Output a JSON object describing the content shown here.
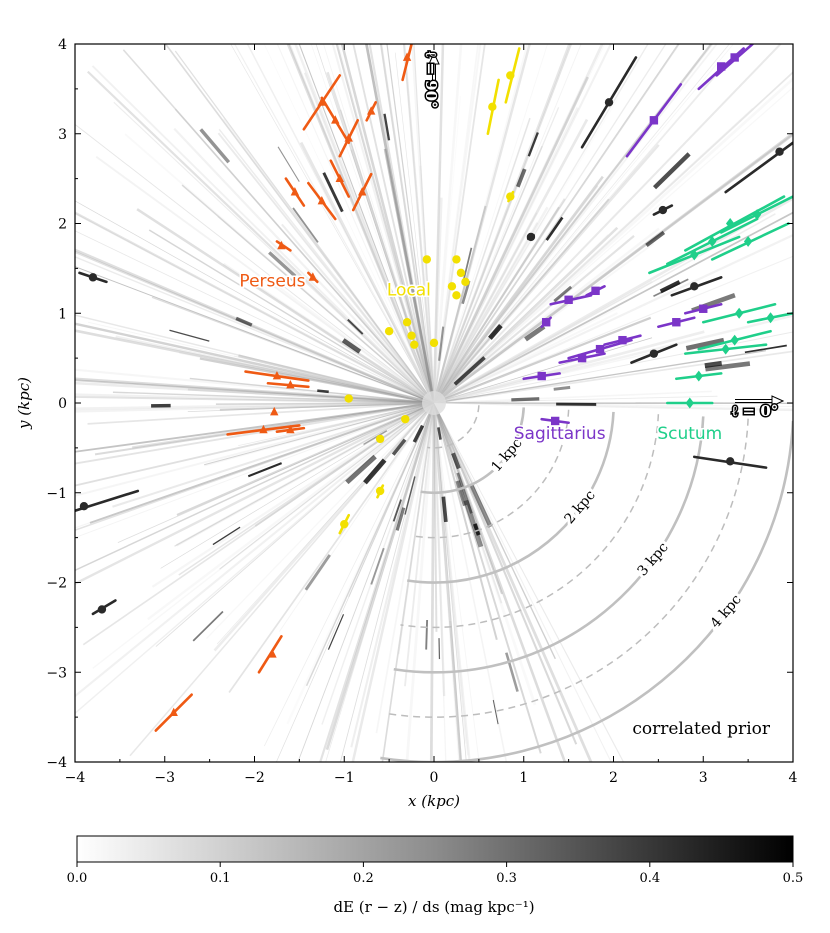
{
  "chart_data": {
    "type": "scatter",
    "title": "",
    "xlabel": "x  (kpc)",
    "ylabel": "y  (kpc)",
    "xlim": [
      -4,
      4
    ],
    "ylim": [
      -4,
      4
    ],
    "x_ticks": [
      "−4",
      "−3",
      "−2",
      "−1",
      "0",
      "1",
      "2",
      "3",
      "4"
    ],
    "y_ticks": [
      "−4",
      "−3",
      "−2",
      "−1",
      "0",
      "1",
      "2",
      "3",
      "4"
    ],
    "annotation": "correlated prior",
    "longitude_markers": [
      {
        "label": "ℓ = 90°",
        "direction": "up"
      },
      {
        "label": "ℓ = 0°",
        "direction": "right"
      }
    ],
    "distance_rings": {
      "labeled": [
        {
          "radius": 1,
          "label": "1 kpc"
        },
        {
          "radius": 2,
          "label": "2 kpc"
        },
        {
          "radius": 3,
          "label": "3 kpc"
        },
        {
          "radius": 4,
          "label": "4 kpc"
        }
      ],
      "dashed": [
        0.5,
        1.5,
        2.5,
        3.5
      ]
    },
    "colorbar": {
      "label": "dE (r − z) / ds  (mag kpc⁻¹)",
      "min": 0.0,
      "max": 0.5,
      "ticks": [
        "0.0",
        "0.1",
        "0.2",
        "0.3",
        "0.4",
        "0.5"
      ],
      "colormap": "white-to-black"
    },
    "series": [
      {
        "name": "Perseus",
        "color": "#ef5a14",
        "marker": "triangle",
        "points": [
          {
            "x": -1.25,
            "y": 3.35,
            "x1": -1.45,
            "y1": 3.05,
            "x2": -1.05,
            "y2": 3.65
          },
          {
            "x": -1.1,
            "y": 3.15,
            "x2": -1.25,
            "y2": 3.4,
            "x1": -0.95,
            "y1": 2.9
          },
          {
            "x": -0.7,
            "y": 3.25,
            "x1": -0.75,
            "y1": 3.15,
            "x2": -0.65,
            "y2": 3.35
          },
          {
            "x": -0.3,
            "y": 3.85,
            "x1": -0.35,
            "y1": 3.6,
            "x2": -0.25,
            "y2": 4.0
          },
          {
            "x": -0.95,
            "y": 2.95,
            "x1": -1.05,
            "y1": 2.75,
            "x2": -0.85,
            "y2": 3.15
          },
          {
            "x": -0.8,
            "y": 2.35,
            "x1": -0.9,
            "y1": 2.15,
            "x2": -0.7,
            "y2": 2.55
          },
          {
            "x": -1.55,
            "y": 2.35,
            "x1": -1.65,
            "y1": 2.5,
            "x2": -1.45,
            "y2": 2.2
          },
          {
            "x": -1.25,
            "y": 2.25,
            "x1": -1.4,
            "y1": 2.45,
            "x2": -1.1,
            "y2": 2.05
          },
          {
            "x": -1.05,
            "y": 2.5,
            "x1": -1.15,
            "y1": 2.7,
            "x2": -0.95,
            "y2": 2.3
          },
          {
            "x": -1.7,
            "y": 1.75,
            "x1": -1.75,
            "y1": 1.8,
            "x2": -1.6,
            "y2": 1.7
          },
          {
            "x": -1.35,
            "y": 1.4,
            "x1": -1.4,
            "y1": 1.45,
            "x2": -1.3,
            "y2": 1.35
          },
          {
            "x": -1.75,
            "y": 0.3,
            "x1": -2.1,
            "y1": 0.35,
            "x2": -1.4,
            "y2": 0.25
          },
          {
            "x": -1.6,
            "y": 0.2,
            "x1": -1.85,
            "y1": 0.22,
            "x2": -1.4,
            "y2": 0.18
          },
          {
            "x": -1.6,
            "y": -0.3,
            "x1": -1.75,
            "y1": -0.32,
            "x2": -1.45,
            "y2": -0.28
          },
          {
            "x": -1.9,
            "y": -0.3,
            "x1": -2.3,
            "y1": -0.35,
            "x2": -1.5,
            "y2": -0.25
          },
          {
            "x": -1.78,
            "y": -0.1,
            "x1": -1.78,
            "y1": -0.1,
            "x2": -1.78,
            "y2": -0.1
          },
          {
            "x": -1.8,
            "y": -2.8,
            "x1": -1.95,
            "y1": -3.0,
            "x2": -1.7,
            "y2": -2.6
          },
          {
            "x": -2.9,
            "y": -3.45,
            "x1": -3.1,
            "y1": -3.65,
            "x2": -2.7,
            "y2": -3.25
          }
        ]
      },
      {
        "name": "Local",
        "color": "#f2e000",
        "marker": "circle",
        "points": [
          {
            "x": 0.85,
            "y": 3.65,
            "x1": 0.8,
            "y1": 3.35,
            "x2": 0.95,
            "y2": 3.95
          },
          {
            "x": 0.65,
            "y": 3.3,
            "x1": 0.6,
            "y1": 3.0,
            "x2": 0.72,
            "y2": 3.6
          },
          {
            "x": 0.85,
            "y": 2.3,
            "x1": 0.83,
            "y1": 2.25,
            "x2": 0.88,
            "y2": 2.35
          },
          {
            "x": -0.08,
            "y": 1.6,
            "x1": -0.08,
            "y1": 1.6,
            "x2": -0.08,
            "y2": 1.6
          },
          {
            "x": 0.25,
            "y": 1.6,
            "x1": 0.25,
            "y1": 1.6,
            "x2": 0.25,
            "y2": 1.6
          },
          {
            "x": 0.3,
            "y": 1.45,
            "x1": 0.3,
            "y1": 1.45,
            "x2": 0.3,
            "y2": 1.45
          },
          {
            "x": 0.2,
            "y": 1.3,
            "x1": 0.2,
            "y1": 1.3,
            "x2": 0.2,
            "y2": 1.3
          },
          {
            "x": 0.35,
            "y": 1.35,
            "x1": 0.35,
            "y1": 1.35,
            "x2": 0.35,
            "y2": 1.35
          },
          {
            "x": 0.25,
            "y": 1.2,
            "x1": 0.25,
            "y1": 1.2,
            "x2": 0.25,
            "y2": 1.2
          },
          {
            "x": -0.5,
            "y": 0.8,
            "x1": -0.5,
            "y1": 0.8,
            "x2": -0.5,
            "y2": 0.8
          },
          {
            "x": -0.3,
            "y": 0.9,
            "x1": -0.3,
            "y1": 0.9,
            "x2": -0.3,
            "y2": 0.9
          },
          {
            "x": -0.25,
            "y": 0.75,
            "x1": -0.25,
            "y1": 0.75,
            "x2": -0.25,
            "y2": 0.75
          },
          {
            "x": -0.22,
            "y": 0.65,
            "x1": -0.22,
            "y1": 0.65,
            "x2": -0.22,
            "y2": 0.65
          },
          {
            "x": 0.0,
            "y": 0.67,
            "x1": 0.0,
            "y1": 0.67,
            "x2": 0.0,
            "y2": 0.67
          },
          {
            "x": -0.95,
            "y": 0.05,
            "x1": -0.95,
            "y1": 0.05,
            "x2": -0.95,
            "y2": 0.05
          },
          {
            "x": -0.32,
            "y": -0.18,
            "x1": -0.32,
            "y1": -0.18,
            "x2": -0.32,
            "y2": -0.18
          },
          {
            "x": -0.6,
            "y": -0.4,
            "x1": -0.6,
            "y1": -0.4,
            "x2": -0.6,
            "y2": -0.4
          },
          {
            "x": -0.6,
            "y": -0.98,
            "x1": -0.63,
            "y1": -1.05,
            "x2": -0.57,
            "y2": -0.92
          },
          {
            "x": -1.0,
            "y": -1.35,
            "x1": -1.05,
            "y1": -1.45,
            "x2": -0.95,
            "y2": -1.25
          }
        ]
      },
      {
        "name": "Sagittarius",
        "color": "#7b35c8",
        "marker": "square",
        "points": [
          {
            "x": 3.35,
            "y": 3.85,
            "x1": 3.15,
            "y1": 3.65,
            "x2": 3.55,
            "y2": 4.0
          },
          {
            "x": 3.2,
            "y": 3.75,
            "x1": 2.95,
            "y1": 3.5,
            "x2": 3.45,
            "y2": 3.95
          },
          {
            "x": 2.45,
            "y": 3.15,
            "x1": 2.15,
            "y1": 2.75,
            "x2": 2.75,
            "y2": 3.55
          },
          {
            "x": 1.5,
            "y": 1.15,
            "x1": 1.3,
            "y1": 1.1,
            "x2": 1.75,
            "y2": 1.2
          },
          {
            "x": 1.8,
            "y": 1.25,
            "x1": 1.7,
            "y1": 1.2,
            "x2": 1.9,
            "y2": 1.3
          },
          {
            "x": 1.25,
            "y": 0.9,
            "x1": 1.2,
            "y1": 0.85,
            "x2": 1.3,
            "y2": 0.95
          },
          {
            "x": 3.0,
            "y": 1.05,
            "x1": 2.8,
            "y1": 1.0,
            "x2": 3.2,
            "y2": 1.1
          },
          {
            "x": 2.7,
            "y": 0.9,
            "x1": 2.5,
            "y1": 0.85,
            "x2": 2.9,
            "y2": 0.95
          },
          {
            "x": 1.85,
            "y": 0.6,
            "x1": 1.5,
            "y1": 0.5,
            "x2": 2.2,
            "y2": 0.7
          },
          {
            "x": 2.1,
            "y": 0.7,
            "x1": 1.9,
            "y1": 0.65,
            "x2": 2.3,
            "y2": 0.75
          },
          {
            "x": 1.65,
            "y": 0.5,
            "x1": 1.4,
            "y1": 0.45,
            "x2": 1.9,
            "y2": 0.55
          },
          {
            "x": 1.2,
            "y": 0.3,
            "x1": 1.0,
            "y1": 0.27,
            "x2": 1.4,
            "y2": 0.33
          },
          {
            "x": 1.35,
            "y": -0.2,
            "x1": 1.2,
            "y1": -0.18,
            "x2": 1.5,
            "y2": -0.22
          }
        ]
      },
      {
        "name": "Scutum",
        "color": "#1fcf8a",
        "marker": "diamond",
        "points": [
          {
            "x": 3.3,
            "y": 2.0,
            "x1": 2.8,
            "y1": 1.7,
            "x2": 3.9,
            "y2": 2.3
          },
          {
            "x": 3.1,
            "y": 1.8,
            "x1": 2.6,
            "y1": 1.55,
            "x2": 3.6,
            "y2": 2.05
          },
          {
            "x": 3.6,
            "y": 2.1,
            "x1": 3.2,
            "y1": 1.9,
            "x2": 4.0,
            "y2": 2.3
          },
          {
            "x": 2.9,
            "y": 1.65,
            "x1": 2.4,
            "y1": 1.45,
            "x2": 3.4,
            "y2": 1.85
          },
          {
            "x": 3.5,
            "y": 1.8,
            "x1": 3.1,
            "y1": 1.6,
            "x2": 3.95,
            "y2": 2.0
          },
          {
            "x": 3.4,
            "y": 1.0,
            "x1": 3.0,
            "y1": 0.9,
            "x2": 3.8,
            "y2": 1.1
          },
          {
            "x": 3.35,
            "y": 0.7,
            "x1": 2.95,
            "y1": 0.6,
            "x2": 3.75,
            "y2": 0.8
          },
          {
            "x": 3.25,
            "y": 0.6,
            "x1": 2.8,
            "y1": 0.55,
            "x2": 3.7,
            "y2": 0.65
          },
          {
            "x": 3.75,
            "y": 0.95,
            "x1": 3.5,
            "y1": 0.9,
            "x2": 4.0,
            "y2": 1.0
          },
          {
            "x": 2.95,
            "y": 0.3,
            "x1": 2.7,
            "y1": 0.27,
            "x2": 3.2,
            "y2": 0.33
          },
          {
            "x": 2.85,
            "y": 0.0,
            "x1": 2.6,
            "y1": 0.0,
            "x2": 3.1,
            "y2": 0.0
          }
        ]
      },
      {
        "name": "",
        "color": "#2a2a2a",
        "marker": "circle",
        "points": [
          {
            "x": 1.95,
            "y": 3.35,
            "x1": 1.65,
            "y1": 2.85,
            "x2": 2.25,
            "y2": 3.85
          },
          {
            "x": 3.85,
            "y": 2.8,
            "x1": 3.25,
            "y1": 2.35,
            "x2": 4.0,
            "y2": 2.9
          },
          {
            "x": 2.55,
            "y": 2.15,
            "x1": 2.45,
            "y1": 2.1,
            "x2": 2.65,
            "y2": 2.2
          },
          {
            "x": 1.08,
            "y": 1.85,
            "x1": 1.05,
            "y1": 1.83,
            "x2": 1.11,
            "y2": 1.87
          },
          {
            "x": 2.9,
            "y": 1.3,
            "x1": 2.65,
            "y1": 1.2,
            "x2": 3.2,
            "y2": 1.4
          },
          {
            "x": 2.45,
            "y": 0.55,
            "x1": 2.2,
            "y1": 0.45,
            "x2": 2.7,
            "y2": 0.65
          },
          {
            "x": 3.3,
            "y": -0.65,
            "x1": 2.9,
            "y1": -0.6,
            "x2": 3.7,
            "y2": -0.72
          },
          {
            "x": -3.8,
            "y": 1.4,
            "x1": -3.95,
            "y1": 1.45,
            "x2": -3.65,
            "y2": 1.35
          },
          {
            "x": -3.9,
            "y": -1.15,
            "x1": -4.0,
            "y1": -1.2,
            "x2": -3.3,
            "y2": -0.98
          },
          {
            "x": -3.7,
            "y": -2.3,
            "x1": -3.8,
            "y1": -2.35,
            "x2": -3.55,
            "y2": -2.2
          }
        ]
      }
    ],
    "arm_labels": [
      {
        "text": "Perseus",
        "x": -1.8,
        "y": 1.3,
        "color": "#ef5a14"
      },
      {
        "text": "Local",
        "x": -0.28,
        "y": 1.2,
        "color": "#f2e000"
      },
      {
        "text": "Sagittarius",
        "x": 1.4,
        "y": -0.4,
        "color": "#7b35c8"
      },
      {
        "text": "Scutum",
        "x": 2.85,
        "y": -0.4,
        "color": "#1fcf8a"
      }
    ],
    "grid": false,
    "legend": "none"
  }
}
